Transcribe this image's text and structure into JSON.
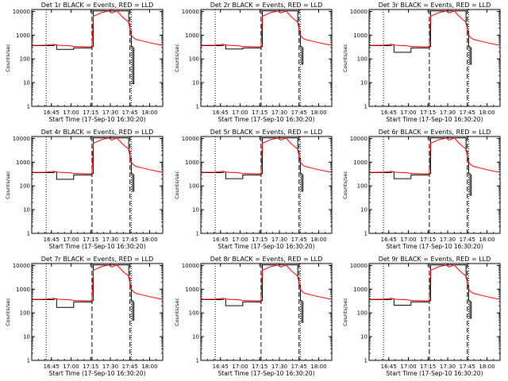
{
  "figure": {
    "x_label": "Start Time (17-Sep-10 16:30:20)",
    "y_label": "Counts/sec",
    "x_ticks": [
      "16:45",
      "17:00",
      "17:15",
      "17:30",
      "17:45",
      "18:00"
    ],
    "y_ticks": [
      "1",
      "10",
      "100",
      "1000",
      "10000"
    ],
    "colors": {
      "events": "#000000",
      "lld": "#ff0000",
      "axes": "#000000",
      "background": "#ffffff"
    }
  },
  "chart_data": [
    {
      "type": "line",
      "title": "Det 1r BLACK = Events, RED = LLD",
      "detector": 1,
      "dip": 250,
      "spike_top": 330,
      "spike_bottom": 9,
      "x": [
        "16:30",
        "16:41",
        "16:47",
        "16:49",
        "17:00",
        "17:02",
        "17:14",
        "17:16",
        "17:17",
        "17:23",
        "17:29",
        "17:31",
        "17:35",
        "17:39",
        "17:44",
        "17:45",
        "17:46",
        "17:47",
        "17:48",
        "17:50",
        "17:55",
        "18:00",
        "18:05",
        "18:09"
      ],
      "series": [
        {
          "name": "Events",
          "y": [
            360,
            360,
            390,
            250,
            250,
            290,
            290,
            330,
            10500,
            10500,
            10500,
            10500,
            10500,
            10500,
            3000,
            1500,
            330,
            9,
            310,
            null,
            null,
            null,
            null,
            null
          ]
        },
        {
          "name": "LLD",
          "y": [
            370,
            380,
            410,
            380,
            350,
            330,
            320,
            330,
            6200,
            8800,
            10500,
            8500,
            10500,
            6000,
            3500,
            1800,
            1000,
            850,
            750,
            650,
            560,
            480,
            420,
            380
          ]
        }
      ],
      "ylim": [
        1,
        12000
      ],
      "log_y": true,
      "vlines_dotted": [
        "16:41",
        "17:46"
      ],
      "vlines_dashed": [
        "17:16",
        "17:45"
      ]
    },
    {
      "type": "line",
      "title": "Det 2r BLACK = Events, RED = LLD",
      "detector": 2,
      "dip": 260,
      "spike_top": 330,
      "spike_bottom": 60,
      "x": [
        "16:30",
        "16:41",
        "16:47",
        "16:49",
        "17:00",
        "17:02",
        "17:14",
        "17:16",
        "17:17",
        "17:23",
        "17:29",
        "17:31",
        "17:35",
        "17:39",
        "17:44",
        "17:45",
        "17:46",
        "17:47",
        "17:48",
        "17:50",
        "17:55",
        "18:00",
        "18:05",
        "18:09"
      ],
      "series": [
        {
          "name": "Events",
          "y": [
            360,
            360,
            390,
            260,
            260,
            290,
            290,
            330,
            10500,
            10500,
            10500,
            10500,
            10500,
            10500,
            3000,
            1500,
            330,
            60,
            310,
            null,
            null,
            null,
            null,
            null
          ]
        },
        {
          "name": "LLD",
          "y": [
            370,
            380,
            410,
            380,
            350,
            330,
            320,
            330,
            6200,
            8800,
            10500,
            8500,
            10500,
            6000,
            3500,
            1800,
            1000,
            850,
            750,
            650,
            560,
            480,
            420,
            380
          ]
        }
      ],
      "ylim": [
        1,
        12000
      ],
      "log_y": true,
      "vlines_dotted": [
        "16:41",
        "17:46"
      ],
      "vlines_dashed": [
        "17:16",
        "17:45"
      ]
    },
    {
      "type": "line",
      "title": "Det 3r BLACK = Events, RED = LLD",
      "detector": 3,
      "dip": 190,
      "spike_top": 330,
      "spike_bottom": 60,
      "x": [
        "16:30",
        "16:41",
        "16:47",
        "16:49",
        "17:00",
        "17:02",
        "17:14",
        "17:16",
        "17:17",
        "17:23",
        "17:29",
        "17:31",
        "17:35",
        "17:39",
        "17:44",
        "17:45",
        "17:46",
        "17:47",
        "17:48",
        "17:50",
        "17:55",
        "18:00",
        "18:05",
        "18:09"
      ],
      "series": [
        {
          "name": "Events",
          "y": [
            360,
            360,
            390,
            190,
            190,
            290,
            290,
            330,
            10500,
            10500,
            10500,
            10500,
            10500,
            10500,
            3000,
            1500,
            330,
            60,
            310,
            null,
            null,
            null,
            null,
            null
          ]
        },
        {
          "name": "LLD",
          "y": [
            370,
            380,
            410,
            380,
            350,
            330,
            320,
            330,
            6200,
            8800,
            10500,
            8500,
            10500,
            6000,
            3500,
            1800,
            1000,
            850,
            750,
            650,
            560,
            480,
            420,
            380
          ]
        }
      ],
      "ylim": [
        1,
        12000
      ],
      "log_y": true,
      "vlines_dotted": [
        "16:41",
        "17:46"
      ],
      "vlines_dashed": [
        "17:16",
        "17:45"
      ]
    },
    {
      "type": "line",
      "title": "Det 4r BLACK = Events, RED = LLD",
      "detector": 4,
      "dip": 190,
      "spike_top": 330,
      "spike_bottom": 60,
      "x": [
        "16:30",
        "16:41",
        "16:47",
        "16:49",
        "17:00",
        "17:02",
        "17:14",
        "17:16",
        "17:17",
        "17:23",
        "17:29",
        "17:31",
        "17:35",
        "17:39",
        "17:44",
        "17:45",
        "17:46",
        "17:47",
        "17:48",
        "17:50",
        "17:55",
        "18:00",
        "18:05",
        "18:09"
      ],
      "series": [
        {
          "name": "Events",
          "y": [
            360,
            360,
            390,
            190,
            190,
            290,
            290,
            330,
            10500,
            10500,
            10500,
            10500,
            10500,
            10500,
            3000,
            1500,
            330,
            60,
            310,
            null,
            null,
            null,
            null,
            null
          ]
        },
        {
          "name": "LLD",
          "y": [
            370,
            380,
            410,
            380,
            350,
            330,
            320,
            330,
            6200,
            8800,
            10500,
            8500,
            10500,
            6000,
            3500,
            1800,
            1000,
            850,
            750,
            650,
            560,
            480,
            420,
            380
          ]
        }
      ],
      "ylim": [
        1,
        12000
      ],
      "log_y": true,
      "vlines_dotted": [
        "16:41",
        "17:46"
      ],
      "vlines_dashed": [
        "17:16",
        "17:45"
      ]
    },
    {
      "type": "line",
      "title": "Det 5r BLACK = Events, RED = LLD",
      "detector": 5,
      "dip": 200,
      "spike_top": 330,
      "spike_bottom": 60,
      "x": [
        "16:30",
        "16:41",
        "16:47",
        "16:49",
        "17:00",
        "17:02",
        "17:14",
        "17:16",
        "17:17",
        "17:23",
        "17:29",
        "17:31",
        "17:35",
        "17:39",
        "17:44",
        "17:45",
        "17:46",
        "17:47",
        "17:48",
        "17:50",
        "17:55",
        "18:00",
        "18:05",
        "18:09"
      ],
      "series": [
        {
          "name": "Events",
          "y": [
            360,
            360,
            390,
            200,
            200,
            290,
            290,
            330,
            10500,
            10500,
            10500,
            10500,
            10500,
            10500,
            3000,
            1500,
            330,
            60,
            310,
            null,
            null,
            null,
            null,
            null
          ]
        },
        {
          "name": "LLD",
          "y": [
            370,
            380,
            410,
            380,
            350,
            330,
            320,
            330,
            6200,
            8800,
            10500,
            8500,
            10500,
            6000,
            3500,
            1800,
            1000,
            850,
            750,
            650,
            560,
            480,
            420,
            380
          ]
        }
      ],
      "ylim": [
        1,
        12000
      ],
      "log_y": true,
      "vlines_dotted": [
        "16:41",
        "17:46"
      ],
      "vlines_dashed": [
        "17:16",
        "17:45"
      ]
    },
    {
      "type": "line",
      "title": "Det 6r BLACK = Events, RED = LLD",
      "detector": 6,
      "dip": 200,
      "spike_top": 330,
      "spike_bottom": 40,
      "x": [
        "16:30",
        "16:41",
        "16:47",
        "16:49",
        "17:00",
        "17:02",
        "17:14",
        "17:16",
        "17:17",
        "17:23",
        "17:29",
        "17:31",
        "17:35",
        "17:39",
        "17:44",
        "17:45",
        "17:46",
        "17:47",
        "17:48",
        "17:50",
        "17:55",
        "18:00",
        "18:05",
        "18:09"
      ],
      "series": [
        {
          "name": "Events",
          "y": [
            360,
            360,
            390,
            200,
            200,
            290,
            290,
            330,
            10500,
            10500,
            10500,
            10500,
            10500,
            10500,
            3000,
            1500,
            330,
            40,
            310,
            null,
            null,
            null,
            null,
            null
          ]
        },
        {
          "name": "LLD",
          "y": [
            370,
            380,
            410,
            380,
            350,
            330,
            320,
            330,
            6200,
            8800,
            10500,
            8500,
            10500,
            6000,
            3500,
            1800,
            1000,
            850,
            750,
            650,
            560,
            480,
            420,
            380
          ]
        }
      ],
      "ylim": [
        1,
        12000
      ],
      "log_y": true,
      "vlines_dotted": [
        "16:41",
        "17:46"
      ],
      "vlines_dashed": [
        "17:16",
        "17:45"
      ]
    },
    {
      "type": "line",
      "title": "Det 7r BLACK = Events, RED = LLD",
      "detector": 7,
      "dip": 170,
      "spike_top": 330,
      "spike_bottom": 50,
      "x": [
        "16:30",
        "16:41",
        "16:47",
        "16:49",
        "17:00",
        "17:02",
        "17:14",
        "17:16",
        "17:17",
        "17:23",
        "17:29",
        "17:31",
        "17:35",
        "17:39",
        "17:44",
        "17:45",
        "17:46",
        "17:47",
        "17:48",
        "17:50",
        "17:55",
        "18:00",
        "18:05",
        "18:09"
      ],
      "series": [
        {
          "name": "Events",
          "y": [
            360,
            360,
            390,
            170,
            170,
            290,
            290,
            330,
            10500,
            10500,
            10500,
            10500,
            10500,
            10500,
            3000,
            1500,
            330,
            50,
            310,
            null,
            null,
            null,
            null,
            null
          ]
        },
        {
          "name": "LLD",
          "y": [
            370,
            380,
            410,
            380,
            350,
            330,
            320,
            330,
            6200,
            8800,
            10500,
            8500,
            10500,
            6000,
            3500,
            1800,
            1000,
            850,
            750,
            650,
            560,
            480,
            420,
            380
          ]
        }
      ],
      "ylim": [
        1,
        12000
      ],
      "log_y": true,
      "vlines_dotted": [
        "16:41",
        "17:46"
      ],
      "vlines_dashed": [
        "17:16",
        "17:45"
      ]
    },
    {
      "type": "line",
      "title": "Det 8r BLACK = Events, RED = LLD",
      "detector": 8,
      "dip": 200,
      "spike_top": 330,
      "spike_bottom": 40,
      "x": [
        "16:30",
        "16:41",
        "16:47",
        "16:49",
        "17:00",
        "17:02",
        "17:14",
        "17:16",
        "17:17",
        "17:23",
        "17:29",
        "17:31",
        "17:35",
        "17:39",
        "17:44",
        "17:45",
        "17:46",
        "17:47",
        "17:48",
        "17:50",
        "17:55",
        "18:00",
        "18:05",
        "18:09"
      ],
      "series": [
        {
          "name": "Events",
          "y": [
            360,
            360,
            390,
            200,
            200,
            290,
            290,
            330,
            10500,
            10500,
            10500,
            10500,
            10500,
            10500,
            3000,
            1500,
            330,
            40,
            310,
            null,
            null,
            null,
            null,
            null
          ]
        },
        {
          "name": "LLD",
          "y": [
            370,
            380,
            410,
            380,
            350,
            330,
            320,
            330,
            6200,
            8800,
            10500,
            8500,
            10500,
            6000,
            3500,
            1800,
            1000,
            850,
            750,
            650,
            560,
            480,
            420,
            380
          ]
        }
      ],
      "ylim": [
        1,
        12000
      ],
      "log_y": true,
      "vlines_dotted": [
        "16:41",
        "17:46"
      ],
      "vlines_dashed": [
        "17:16",
        "17:45"
      ]
    },
    {
      "type": "line",
      "title": "Det 9r BLACK = Events, RED = LLD",
      "detector": 9,
      "dip": 210,
      "spike_top": 330,
      "spike_bottom": 60,
      "x": [
        "16:30",
        "16:41",
        "16:47",
        "16:49",
        "17:00",
        "17:02",
        "17:14",
        "17:16",
        "17:17",
        "17:23",
        "17:29",
        "17:31",
        "17:35",
        "17:39",
        "17:44",
        "17:45",
        "17:46",
        "17:47",
        "17:48",
        "17:50",
        "17:55",
        "18:00",
        "18:05",
        "18:09"
      ],
      "series": [
        {
          "name": "Events",
          "y": [
            360,
            360,
            390,
            210,
            210,
            290,
            290,
            330,
            10500,
            10500,
            10500,
            10500,
            10500,
            10500,
            3000,
            1500,
            330,
            60,
            310,
            null,
            null,
            null,
            null,
            null
          ]
        },
        {
          "name": "LLD",
          "y": [
            370,
            380,
            410,
            380,
            350,
            330,
            320,
            330,
            6200,
            8800,
            10500,
            8500,
            10500,
            6000,
            3500,
            1800,
            1000,
            850,
            750,
            650,
            560,
            480,
            420,
            380
          ]
        }
      ],
      "ylim": [
        1,
        12000
      ],
      "log_y": true,
      "vlines_dotted": [
        "16:41",
        "17:46"
      ],
      "vlines_dashed": [
        "17:16",
        "17:45"
      ]
    }
  ]
}
